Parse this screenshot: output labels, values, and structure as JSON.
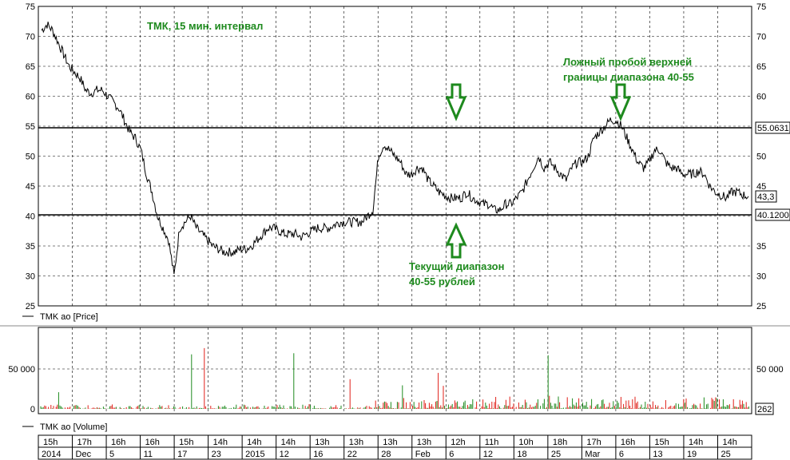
{
  "chart_data": [
    {
      "type": "line",
      "series": [
        {
          "name": "TMK ao [Price]"
        }
      ],
      "ylim": [
        25,
        75
      ],
      "yticks": [
        25,
        30,
        35,
        40,
        45,
        50,
        55,
        60,
        65,
        70,
        75
      ],
      "grid": true,
      "levels": [
        {
          "value": 55.06,
          "label": "55.0631"
        },
        {
          "value": 40.12,
          "label": "40.1200"
        }
      ],
      "last_value": {
        "value": 43.3,
        "label": "43,3"
      },
      "points": [
        [
          0,
          71
        ],
        [
          1,
          72
        ],
        [
          2,
          71
        ],
        [
          3,
          69
        ],
        [
          4,
          67
        ],
        [
          5,
          65
        ],
        [
          6,
          64
        ],
        [
          7,
          63
        ],
        [
          8,
          61
        ],
        [
          9,
          60.5
        ],
        [
          10,
          61
        ],
        [
          11,
          61
        ],
        [
          12,
          60
        ],
        [
          13,
          59
        ],
        [
          14,
          58
        ],
        [
          15,
          56
        ],
        [
          16,
          54
        ],
        [
          17,
          53
        ],
        [
          18,
          51
        ],
        [
          19,
          47
        ],
        [
          20,
          44
        ],
        [
          21,
          40
        ],
        [
          22,
          38
        ],
        [
          23,
          36
        ],
        [
          24,
          30
        ],
        [
          25,
          38
        ],
        [
          26,
          39
        ],
        [
          27,
          40
        ],
        [
          28,
          38
        ],
        [
          29,
          37
        ],
        [
          30,
          36
        ],
        [
          31,
          35
        ],
        [
          32,
          34.5
        ],
        [
          33,
          34
        ],
        [
          34,
          34
        ],
        [
          35,
          34
        ],
        [
          36,
          34.5
        ],
        [
          37,
          34.5
        ],
        [
          38,
          35
        ],
        [
          39,
          36
        ],
        [
          40,
          37
        ],
        [
          41,
          38
        ],
        [
          42,
          38
        ],
        [
          43,
          37.5
        ],
        [
          44,
          37
        ],
        [
          45,
          37
        ],
        [
          46,
          37
        ],
        [
          47,
          36.5
        ],
        [
          48,
          37
        ],
        [
          49,
          37.5
        ],
        [
          50,
          38
        ],
        [
          51,
          38
        ],
        [
          52,
          38
        ],
        [
          53,
          38.5
        ],
        [
          54,
          39
        ],
        [
          55,
          39
        ],
        [
          56,
          39
        ],
        [
          57,
          39
        ],
        [
          58,
          39
        ],
        [
          59,
          40
        ],
        [
          60,
          41
        ],
        [
          61,
          50
        ],
        [
          62,
          52
        ],
        [
          63,
          51
        ],
        [
          64,
          50
        ],
        [
          65,
          49
        ],
        [
          66,
          47
        ],
        [
          67,
          47
        ],
        [
          68,
          48
        ],
        [
          69,
          48
        ],
        [
          70,
          46
        ],
        [
          71,
          45
        ],
        [
          72,
          44
        ],
        [
          73,
          43.5
        ],
        [
          74,
          43
        ],
        [
          75,
          43
        ],
        [
          76,
          43
        ],
        [
          77,
          44
        ],
        [
          78,
          43
        ],
        [
          79,
          42.5
        ],
        [
          80,
          42
        ],
        [
          81,
          42
        ],
        [
          82,
          41
        ],
        [
          83,
          41
        ],
        [
          84,
          42
        ],
        [
          85,
          42
        ],
        [
          86,
          43
        ],
        [
          87,
          44
        ],
        [
          88,
          46
        ],
        [
          89,
          48
        ],
        [
          90,
          50
        ],
        [
          91,
          48
        ],
        [
          92,
          49
        ],
        [
          93,
          48
        ],
        [
          94,
          47
        ],
        [
          95,
          46
        ],
        [
          96,
          48
        ],
        [
          97,
          49
        ],
        [
          98,
          49
        ],
        [
          99,
          50
        ],
        [
          100,
          53
        ],
        [
          101,
          54
        ],
        [
          102,
          55
        ],
        [
          103,
          56
        ],
        [
          104,
          56
        ],
        [
          105,
          55
        ],
        [
          106,
          53
        ],
        [
          107,
          51
        ],
        [
          108,
          49
        ],
        [
          109,
          48
        ],
        [
          110,
          49
        ],
        [
          111,
          51
        ],
        [
          112,
          51
        ],
        [
          113,
          49
        ],
        [
          114,
          48
        ],
        [
          115,
          48
        ],
        [
          116,
          47
        ],
        [
          117,
          47
        ],
        [
          118,
          47
        ],
        [
          119,
          47.5
        ],
        [
          120,
          47
        ],
        [
          121,
          45
        ],
        [
          122,
          44
        ],
        [
          123,
          43.5
        ],
        [
          124,
          43
        ],
        [
          125,
          44
        ],
        [
          126,
          44
        ],
        [
          127,
          43.5
        ],
        [
          128,
          43.3
        ]
      ],
      "x_scale": [
        0,
        128
      ]
    },
    {
      "type": "bar",
      "series": [
        {
          "name": "TMK ao [Volume]"
        }
      ],
      "ylim": [
        0,
        100000
      ],
      "yticks": [
        {
          "value": 0,
          "label": "0"
        },
        {
          "value": 50000,
          "label": "50 000"
        }
      ],
      "last_value": {
        "value": 262,
        "label": "262"
      }
    }
  ],
  "annotations": {
    "title": "ТМК, 15 мин. интервал",
    "false_breakout_line1": "Ложный пробой верхней",
    "false_breakout_line2": "границы диапазона 40-55",
    "range_line1": "Текущий диапазон",
    "range_line2": "40-55 рублей"
  },
  "legend": {
    "price": "TMK ao [Price]",
    "volume": "TMK ao [Volume]"
  },
  "x_axis": {
    "top_row": [
      "15h",
      "17h",
      "16h",
      "16h",
      "15h",
      "14h",
      "14h",
      "14h",
      "13h",
      "13h",
      "13h",
      "13h",
      "12h",
      "11h",
      "10h",
      "18h",
      "17h",
      "16h",
      "15h",
      "14h",
      "14h"
    ],
    "bottom_row": [
      "2014",
      "Dec",
      "5",
      "11",
      "17",
      "23",
      "2015",
      "12",
      "16",
      "22",
      "28",
      "Feb",
      "6",
      "12",
      "18",
      "25",
      "Mar",
      "6",
      "13",
      "19",
      "25"
    ]
  },
  "colors": {
    "up": "#1e8a1e",
    "down": "#e0201a",
    "annotation": "#1e8a1e"
  }
}
